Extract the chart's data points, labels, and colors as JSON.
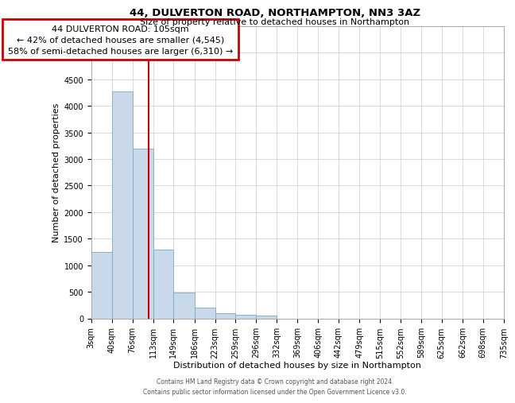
{
  "title1": "44, DULVERTON ROAD, NORTHAMPTON, NN3 3AZ",
  "title2": "Size of property relative to detached houses in Northampton",
  "xlabel": "Distribution of detached houses by size in Northampton",
  "ylabel": "Number of detached properties",
  "footer1": "Contains HM Land Registry data © Crown copyright and database right 2024.",
  "footer2": "Contains public sector information licensed under the Open Government Licence v3.0.",
  "annotation_line1": "44 DULVERTON ROAD: 105sqm",
  "annotation_line2": "← 42% of detached houses are smaller (4,545)",
  "annotation_line3": "58% of semi-detached houses are larger (6,310) →",
  "bar_color": "#c9d9ea",
  "bar_edge_color": "#7aaac8",
  "red_line_color": "#cc0000",
  "grid_color": "#cccccc",
  "bg_color": "#ffffff",
  "property_size": 105,
  "bin_edges": [
    3,
    40,
    76,
    113,
    149,
    186,
    223,
    259,
    296,
    332,
    369,
    406,
    442,
    479,
    515,
    552,
    589,
    625,
    662,
    698,
    735
  ],
  "bin_labels": [
    "3sqm",
    "40sqm",
    "76sqm",
    "113sqm",
    "149sqm",
    "186sqm",
    "223sqm",
    "259sqm",
    "296sqm",
    "332sqm",
    "369sqm",
    "406sqm",
    "442sqm",
    "479sqm",
    "515sqm",
    "552sqm",
    "589sqm",
    "625sqm",
    "662sqm",
    "698sqm",
    "735sqm"
  ],
  "counts": [
    1250,
    4280,
    3200,
    1300,
    480,
    200,
    100,
    70,
    50,
    0,
    0,
    0,
    0,
    0,
    0,
    0,
    0,
    0,
    0,
    0
  ],
  "ylim_max": 5500,
  "ytick_step": 500,
  "title1_fontsize": 9.5,
  "title2_fontsize": 8,
  "xlabel_fontsize": 8,
  "ylabel_fontsize": 8,
  "tick_fontsize": 7,
  "annot_fontsize": 8,
  "footer_fontsize": 5.5
}
